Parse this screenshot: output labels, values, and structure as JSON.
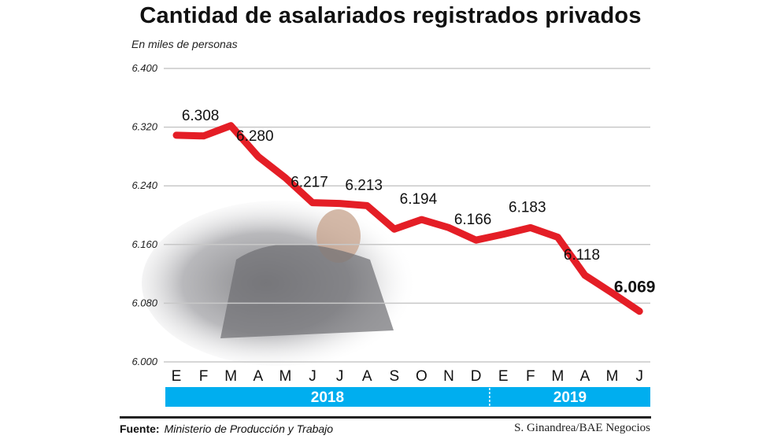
{
  "chart_data": {
    "type": "line",
    "title": "Cantidad de asalariados registrados privados",
    "subtitle": "En miles de personas",
    "categories": [
      "E",
      "F",
      "M",
      "A",
      "M",
      "J",
      "J",
      "A",
      "S",
      "O",
      "N",
      "D",
      "E",
      "F",
      "M",
      "A",
      "M",
      "J"
    ],
    "years": [
      {
        "label": "2018",
        "months": 12
      },
      {
        "label": "2019",
        "months": 6
      }
    ],
    "series": [
      {
        "values": [
          6.309,
          6.308,
          6.322,
          6.28,
          6.251,
          6.217,
          6.216,
          6.213,
          6.181,
          6.194,
          6.183,
          6.166,
          6.174,
          6.183,
          6.17,
          6.118,
          6.094,
          6.069
        ],
        "color": "#e41e26"
      }
    ],
    "data_labels": [
      {
        "index": 1,
        "text": "6.308"
      },
      {
        "index": 3,
        "text": "6.280"
      },
      {
        "index": 5,
        "text": "6.217"
      },
      {
        "index": 7,
        "text": "6.213"
      },
      {
        "index": 9,
        "text": "6.194"
      },
      {
        "index": 11,
        "text": "6.166"
      },
      {
        "index": 13,
        "text": "6.183"
      },
      {
        "index": 15,
        "text": "6.118"
      },
      {
        "index": 17,
        "text": "6.069",
        "bold": true
      }
    ],
    "yticks": [
      "6.000",
      "6.080",
      "6.160",
      "6.240",
      "6.320",
      "6.400"
    ],
    "ytick_values": [
      6.0,
      6.08,
      6.16,
      6.24,
      6.32,
      6.4
    ],
    "ylim": [
      6.0,
      6.4
    ],
    "grid": true,
    "year_bar_color": "#00aeef"
  },
  "footer": {
    "source_label": "Fuente:",
    "source": "Ministerio de Producción y Trabajo",
    "credit": "S. Ginandrea/BAE Negocios"
  }
}
